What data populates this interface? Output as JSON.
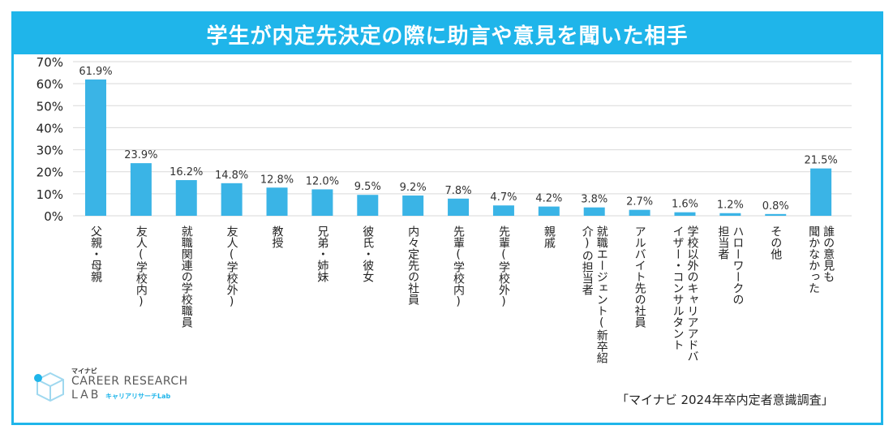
{
  "chart_data": {
    "type": "bar",
    "title": "学生が内定先決定の際に助言や意見を聞いた相手",
    "xlabel": "",
    "ylabel": "",
    "ylim": [
      0,
      70
    ],
    "yticks": [
      "0%",
      "10%",
      "20%",
      "30%",
      "40%",
      "50%",
      "60%",
      "70%"
    ],
    "categories": [
      [
        "父親・母親"
      ],
      [
        "友人(学校内)"
      ],
      [
        "就職関連の学校職員"
      ],
      [
        "友人(学校外)"
      ],
      [
        "教授"
      ],
      [
        "兄弟・姉妹"
      ],
      [
        "彼氏・彼女"
      ],
      [
        "内々定先の社員"
      ],
      [
        "先輩(学校内)"
      ],
      [
        "先輩(学校外)"
      ],
      [
        "親戚"
      ],
      [
        "就職エージェント(新卒紹",
        "介)の担当者"
      ],
      [
        "アルバイト先の社員"
      ],
      [
        "学校以外のキャリアアドバ",
        "イザー・コンサルタント"
      ],
      [
        "ハローワークの",
        "担当者"
      ],
      [
        "その他"
      ],
      [
        "誰の意見も",
        "聞かなかった"
      ]
    ],
    "values": [
      61.9,
      23.9,
      16.2,
      14.8,
      12.8,
      12.0,
      9.5,
      9.2,
      7.8,
      4.7,
      4.2,
      3.8,
      2.7,
      1.6,
      1.2,
      0.8,
      21.5
    ],
    "data_labels": [
      "61.9%",
      "23.9%",
      "16.2%",
      "14.8%",
      "12.8%",
      "12.0%",
      "9.5%",
      "9.2%",
      "7.8%",
      "4.7%",
      "4.2%",
      "3.8%",
      "2.7%",
      "1.6%",
      "1.2%",
      "0.8%",
      "21.5%"
    ],
    "grid": true,
    "bar_color": "#3ab4e6"
  },
  "colors": {
    "accent": "#1fb5ea",
    "bar": "#3ab4e6",
    "grid": "#d9d9d9"
  },
  "logo": {
    "small_text": "マイナビ",
    "main_text": "CAREER RESEARCH",
    "lab_text": "LAB",
    "sub_text": "キャリアリサーチLab",
    "icon": "cube-logo-icon"
  },
  "source": "「マイナビ 2024年卒内定者意識調査」"
}
